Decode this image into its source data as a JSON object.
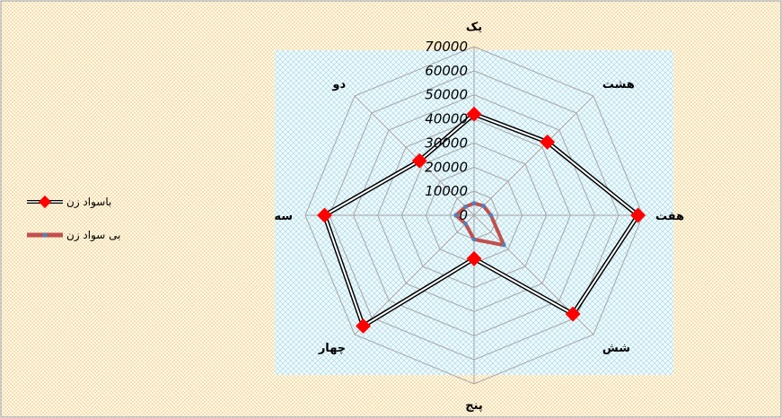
{
  "chart_data": {
    "type": "radar",
    "categories": [
      "یک",
      "هشت",
      "هفت",
      "شش",
      "پنج",
      "چهار",
      "سه",
      "دو"
    ],
    "series": [
      {
        "name": "باسواد زن",
        "color": "#000000",
        "marker_color": "#ff0000",
        "values": [
          42000,
          43000,
          68000,
          58000,
          18000,
          65000,
          62000,
          32000
        ]
      },
      {
        "name": "بی سواد زن",
        "color": "#c0504d",
        "marker_color": "#4f81bd",
        "values": [
          5000,
          5500,
          7000,
          17500,
          10000,
          5000,
          7500,
          5000
        ]
      }
    ],
    "rmin": 0,
    "rmax": 70000,
    "ticks": [
      "0",
      "10000",
      "20000",
      "30000",
      "40000",
      "50000",
      "60000",
      "70000"
    ],
    "tick_values": [
      0,
      10000,
      20000,
      30000,
      40000,
      50000,
      60000,
      70000
    ],
    "grid": true,
    "legend_position": "left",
    "colors": {
      "grid": "#a6a6a6",
      "plot_hatch": "#9fd6e6",
      "background_hatch": "#f0c060"
    }
  }
}
